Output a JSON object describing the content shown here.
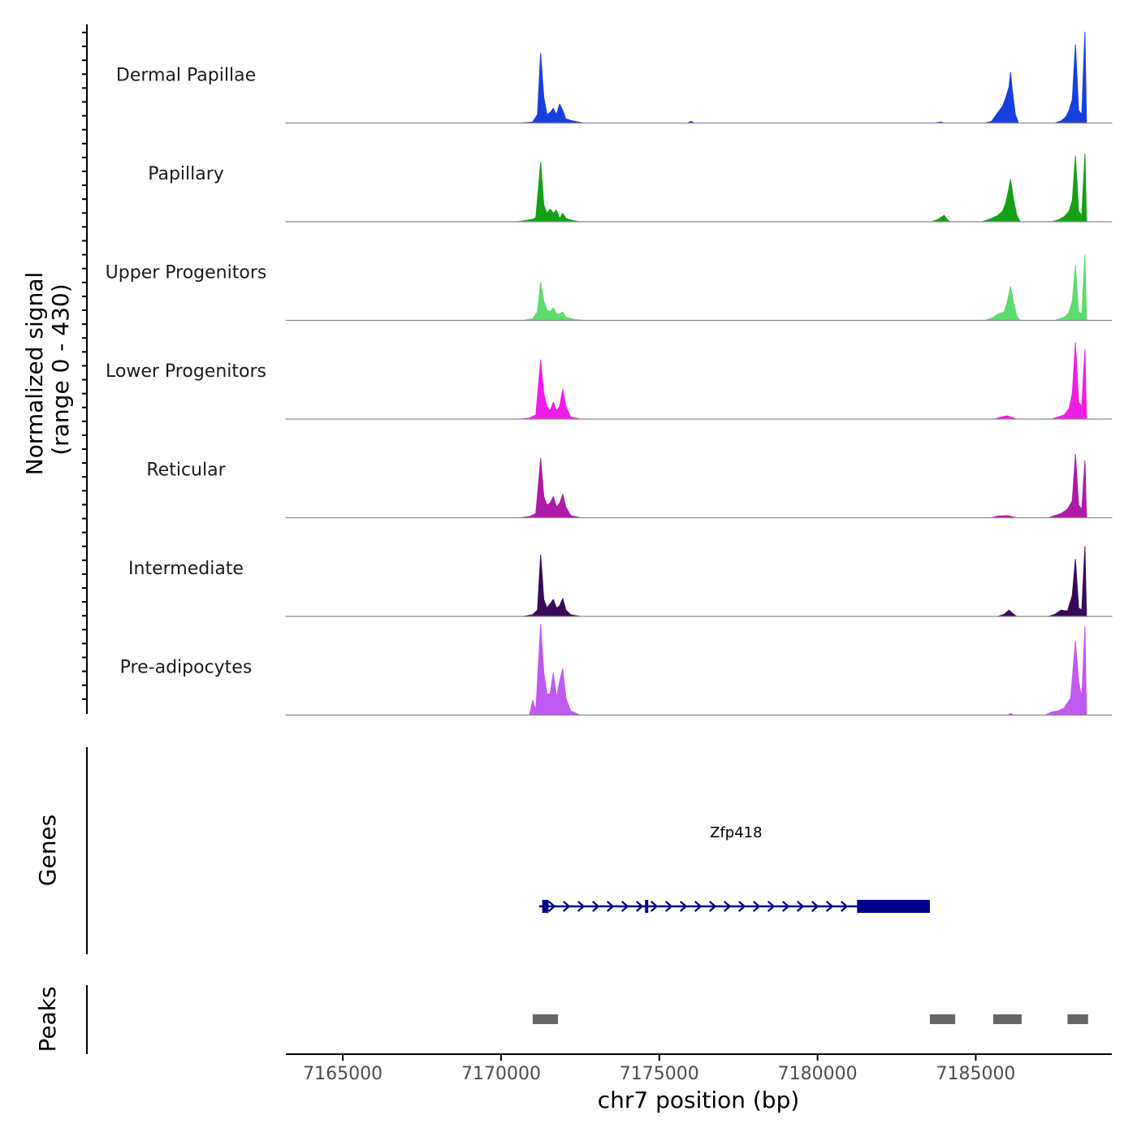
{
  "chart_data": {
    "type": "area",
    "title": "",
    "chromosome": "chr7",
    "xlabel": "chr7 position (bp)",
    "ylabel": "Normalized signal",
    "ylabel_range": "(range 0 - 430)",
    "ylim": [
      0,
      430
    ],
    "xlim": [
      7163200,
      7189300
    ],
    "x_ticks": [
      7165000,
      7170000,
      7175000,
      7180000,
      7185000
    ],
    "x_tick_labels": [
      "7165000",
      "7170000",
      "7175000",
      "7180000",
      "7185000"
    ],
    "series": [
      {
        "name": "Dermal Papillae",
        "color": "#1840E0",
        "points": [
          [
            7163200,
            0
          ],
          [
            7170600,
            0
          ],
          [
            7170800,
            2
          ],
          [
            7171000,
            5
          ],
          [
            7171150,
            40
          ],
          [
            7171250,
            330
          ],
          [
            7171350,
            120
          ],
          [
            7171450,
            40
          ],
          [
            7171550,
            50
          ],
          [
            7171650,
            70
          ],
          [
            7171750,
            40
          ],
          [
            7171850,
            90
          ],
          [
            7171950,
            60
          ],
          [
            7172050,
            20
          ],
          [
            7172200,
            12
          ],
          [
            7172400,
            6
          ],
          [
            7172600,
            0
          ],
          [
            7175900,
            0
          ],
          [
            7176000,
            8
          ],
          [
            7176100,
            0
          ],
          [
            7183700,
            0
          ],
          [
            7183900,
            5
          ],
          [
            7184000,
            0
          ],
          [
            7185300,
            0
          ],
          [
            7185500,
            8
          ],
          [
            7185700,
            50
          ],
          [
            7185850,
            80
          ],
          [
            7185950,
            120
          ],
          [
            7186050,
            170
          ],
          [
            7186100,
            240
          ],
          [
            7186150,
            160
          ],
          [
            7186250,
            40
          ],
          [
            7186350,
            0
          ],
          [
            7187500,
            0
          ],
          [
            7187700,
            10
          ],
          [
            7187850,
            30
          ],
          [
            7187950,
            60
          ],
          [
            7188050,
            110
          ],
          [
            7188150,
            370
          ],
          [
            7188250,
            60
          ],
          [
            7188350,
            40
          ],
          [
            7188450,
            430
          ],
          [
            7188500,
            0
          ],
          [
            7189300,
            0
          ]
        ]
      },
      {
        "name": "Papillary",
        "color": "#16A016",
        "points": [
          [
            7163200,
            0
          ],
          [
            7170500,
            0
          ],
          [
            7170700,
            4
          ],
          [
            7171000,
            12
          ],
          [
            7171100,
            20
          ],
          [
            7171250,
            280
          ],
          [
            7171350,
            80
          ],
          [
            7171450,
            40
          ],
          [
            7171550,
            60
          ],
          [
            7171650,
            40
          ],
          [
            7171750,
            55
          ],
          [
            7171850,
            15
          ],
          [
            7171950,
            40
          ],
          [
            7172050,
            15
          ],
          [
            7172300,
            5
          ],
          [
            7172500,
            0
          ],
          [
            7183600,
            0
          ],
          [
            7183800,
            10
          ],
          [
            7184000,
            30
          ],
          [
            7184100,
            10
          ],
          [
            7184200,
            0
          ],
          [
            7185200,
            0
          ],
          [
            7185500,
            15
          ],
          [
            7185700,
            30
          ],
          [
            7185850,
            50
          ],
          [
            7185950,
            90
          ],
          [
            7186050,
            160
          ],
          [
            7186100,
            200
          ],
          [
            7186200,
            100
          ],
          [
            7186300,
            30
          ],
          [
            7186400,
            0
          ],
          [
            7187400,
            0
          ],
          [
            7187600,
            8
          ],
          [
            7187800,
            25
          ],
          [
            7187950,
            50
          ],
          [
            7188050,
            100
          ],
          [
            7188150,
            310
          ],
          [
            7188250,
            50
          ],
          [
            7188350,
            30
          ],
          [
            7188450,
            320
          ],
          [
            7188500,
            0
          ],
          [
            7189300,
            0
          ]
        ]
      },
      {
        "name": "Upper Progenitors",
        "color": "#5CDC6C",
        "points": [
          [
            7163200,
            0
          ],
          [
            7170700,
            0
          ],
          [
            7171000,
            8
          ],
          [
            7171150,
            40
          ],
          [
            7171250,
            180
          ],
          [
            7171350,
            90
          ],
          [
            7171450,
            50
          ],
          [
            7171550,
            40
          ],
          [
            7171650,
            60
          ],
          [
            7171750,
            30
          ],
          [
            7171850,
            30
          ],
          [
            7171950,
            40
          ],
          [
            7172050,
            15
          ],
          [
            7172300,
            5
          ],
          [
            7172600,
            0
          ],
          [
            7185300,
            0
          ],
          [
            7185500,
            10
          ],
          [
            7185700,
            30
          ],
          [
            7185900,
            40
          ],
          [
            7186000,
            90
          ],
          [
            7186100,
            160
          ],
          [
            7186200,
            80
          ],
          [
            7186300,
            20
          ],
          [
            7186400,
            0
          ],
          [
            7187500,
            0
          ],
          [
            7187700,
            10
          ],
          [
            7187850,
            20
          ],
          [
            7187950,
            40
          ],
          [
            7188050,
            90
          ],
          [
            7188150,
            260
          ],
          [
            7188250,
            40
          ],
          [
            7188350,
            30
          ],
          [
            7188450,
            310
          ],
          [
            7188500,
            0
          ],
          [
            7189300,
            0
          ]
        ]
      },
      {
        "name": "Lower Progenitors",
        "color": "#F01CE8",
        "points": [
          [
            7163200,
            0
          ],
          [
            7170600,
            0
          ],
          [
            7170900,
            5
          ],
          [
            7171100,
            20
          ],
          [
            7171250,
            280
          ],
          [
            7171350,
            120
          ],
          [
            7171450,
            60
          ],
          [
            7171550,
            40
          ],
          [
            7171650,
            80
          ],
          [
            7171750,
            40
          ],
          [
            7171850,
            60
          ],
          [
            7171950,
            140
          ],
          [
            7172050,
            60
          ],
          [
            7172200,
            10
          ],
          [
            7172500,
            0
          ],
          [
            7185600,
            0
          ],
          [
            7185800,
            10
          ],
          [
            7186000,
            15
          ],
          [
            7186200,
            5
          ],
          [
            7186300,
            0
          ],
          [
            7187400,
            0
          ],
          [
            7187600,
            10
          ],
          [
            7187800,
            20
          ],
          [
            7187950,
            50
          ],
          [
            7188050,
            120
          ],
          [
            7188150,
            360
          ],
          [
            7188250,
            80
          ],
          [
            7188350,
            60
          ],
          [
            7188450,
            330
          ],
          [
            7188500,
            0
          ],
          [
            7189300,
            0
          ]
        ]
      },
      {
        "name": "Reticular",
        "color": "#B01AA8",
        "points": [
          [
            7163200,
            0
          ],
          [
            7170600,
            0
          ],
          [
            7170900,
            6
          ],
          [
            7171100,
            20
          ],
          [
            7171250,
            280
          ],
          [
            7171350,
            100
          ],
          [
            7171450,
            60
          ],
          [
            7171550,
            70
          ],
          [
            7171650,
            100
          ],
          [
            7171750,
            50
          ],
          [
            7171850,
            70
          ],
          [
            7171950,
            110
          ],
          [
            7172050,
            50
          ],
          [
            7172200,
            10
          ],
          [
            7172500,
            0
          ],
          [
            7185500,
            0
          ],
          [
            7185700,
            8
          ],
          [
            7186000,
            10
          ],
          [
            7186200,
            3
          ],
          [
            7186300,
            0
          ],
          [
            7187300,
            0
          ],
          [
            7187500,
            10
          ],
          [
            7187700,
            20
          ],
          [
            7187900,
            40
          ],
          [
            7188050,
            80
          ],
          [
            7188150,
            300
          ],
          [
            7188250,
            60
          ],
          [
            7188350,
            40
          ],
          [
            7188450,
            270
          ],
          [
            7188500,
            0
          ],
          [
            7189300,
            0
          ]
        ]
      },
      {
        "name": "Intermediate",
        "color": "#3A0A5A",
        "points": [
          [
            7163200,
            0
          ],
          [
            7170700,
            0
          ],
          [
            7171000,
            8
          ],
          [
            7171150,
            30
          ],
          [
            7171250,
            290
          ],
          [
            7171350,
            80
          ],
          [
            7171450,
            40
          ],
          [
            7171550,
            60
          ],
          [
            7171650,
            80
          ],
          [
            7171750,
            40
          ],
          [
            7171850,
            50
          ],
          [
            7171950,
            85
          ],
          [
            7172050,
            30
          ],
          [
            7172200,
            8
          ],
          [
            7172500,
            0
          ],
          [
            7185700,
            0
          ],
          [
            7185900,
            10
          ],
          [
            7186050,
            30
          ],
          [
            7186200,
            10
          ],
          [
            7186300,
            0
          ],
          [
            7187300,
            0
          ],
          [
            7187500,
            10
          ],
          [
            7187700,
            30
          ],
          [
            7187900,
            25
          ],
          [
            7188050,
            100
          ],
          [
            7188150,
            270
          ],
          [
            7188250,
            40
          ],
          [
            7188350,
            30
          ],
          [
            7188450,
            330
          ],
          [
            7188500,
            0
          ],
          [
            7189300,
            0
          ]
        ]
      },
      {
        "name": "Pre-adipocytes",
        "color": "#C058F2",
        "points": [
          [
            7163200,
            0
          ],
          [
            7170900,
            0
          ],
          [
            7171000,
            70
          ],
          [
            7171100,
            20
          ],
          [
            7171250,
            430
          ],
          [
            7171350,
            200
          ],
          [
            7171450,
            100
          ],
          [
            7171550,
            100
          ],
          [
            7171650,
            200
          ],
          [
            7171750,
            80
          ],
          [
            7171850,
            160
          ],
          [
            7171950,
            220
          ],
          [
            7172050,
            80
          ],
          [
            7172200,
            20
          ],
          [
            7172500,
            0
          ],
          [
            7186000,
            0
          ],
          [
            7186100,
            8
          ],
          [
            7186200,
            0
          ],
          [
            7187200,
            0
          ],
          [
            7187400,
            15
          ],
          [
            7187600,
            20
          ],
          [
            7187800,
            35
          ],
          [
            7188000,
            80
          ],
          [
            7188150,
            350
          ],
          [
            7188250,
            160
          ],
          [
            7188350,
            80
          ],
          [
            7188450,
            420
          ],
          [
            7188500,
            0
          ],
          [
            7189300,
            0
          ]
        ]
      }
    ],
    "genes": [
      {
        "name": "Zfp418",
        "strand": "+",
        "start": 7171200,
        "end": 7183550,
        "exons": [
          [
            7171300,
            7171500
          ],
          [
            7174550,
            7174650
          ],
          [
            7181250,
            7183550
          ]
        ]
      }
    ],
    "peaks": [
      [
        7171000,
        7171800
      ],
      [
        7183550,
        7184350
      ],
      [
        7185550,
        7186450
      ],
      [
        7187900,
        7188550
      ]
    ],
    "panels": {
      "genes_label": "Genes",
      "peaks_label": "Peaks"
    }
  }
}
